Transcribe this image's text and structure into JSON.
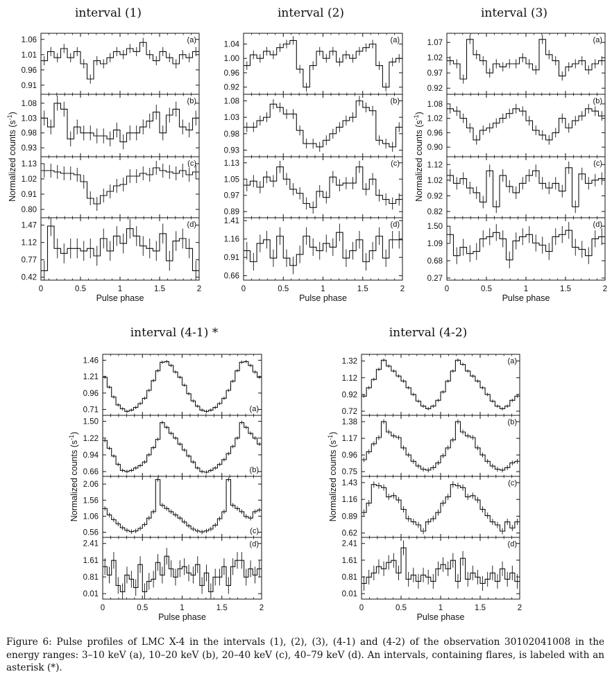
{
  "caption": "Figure 6: Pulse profiles of LMC X-4 in the intervals (1), (2), (3), (4-1) and (4-2) of the observation 30102041008 in the energy ranges: 3–10 keV (a), 10–20 keV (b), 20–40 keV (c), 40–79 keV (d). An intervals, containing flares, is labeled with an asterisk (*).",
  "chart_data": [
    {
      "type": "line",
      "title": "interval (1)",
      "xlabel": "Pulse phase",
      "ylabel": "Normalized counts (s-1)",
      "xlim": [
        0,
        2
      ],
      "xticks": [
        "0",
        "0.5",
        "1",
        "1.5",
        "2"
      ],
      "panels": [
        {
          "label": "(a)",
          "label_pos": "top-right",
          "ylim": [
            0.88,
            1.08
          ],
          "yticks": [
            "0.91",
            "0.96",
            "1.01",
            "1.06"
          ],
          "values": [
            0.99,
            1.02,
            1.0,
            1.03,
            1.0,
            1.02,
            0.98,
            0.93,
            0.99,
            0.98,
            1.0,
            1.02,
            1.01,
            1.03,
            1.02,
            1.05,
            1.01,
            0.99,
            1.02,
            1.0,
            0.98,
            1.01,
            1.0,
            1.02
          ],
          "err": 0.015
        },
        {
          "label": "(b)",
          "label_pos": "top-right",
          "ylim": [
            0.9,
            1.11
          ],
          "yticks": [
            "0.93",
            "0.98",
            "1.03",
            "1.08"
          ],
          "values": [
            1.03,
            1.0,
            1.08,
            1.06,
            0.96,
            1.0,
            0.98,
            0.98,
            0.97,
            0.97,
            0.96,
            0.99,
            0.95,
            0.98,
            0.98,
            1.0,
            1.02,
            1.05,
            0.98,
            1.04,
            1.06,
            1.0,
            0.99,
            1.03
          ],
          "err": 0.025
        },
        {
          "label": "(c)",
          "label_pos": "top-right",
          "ylim": [
            0.74,
            1.18
          ],
          "yticks": [
            "0.80",
            "0.91",
            "1.02",
            "1.13"
          ],
          "values": [
            1.08,
            1.08,
            1.07,
            1.06,
            1.06,
            1.05,
            1.0,
            0.88,
            0.84,
            0.9,
            0.93,
            0.97,
            0.98,
            1.04,
            1.04,
            1.06,
            1.05,
            1.1,
            1.08,
            1.07,
            1.06,
            1.08,
            1.05,
            1.07
          ],
          "err": 0.05
        },
        {
          "label": "(d)",
          "label_pos": "top-right",
          "ylim": [
            0.36,
            1.62
          ],
          "yticks": [
            "0.42",
            "0.77",
            "1.12",
            "1.47"
          ],
          "values": [
            0.55,
            1.45,
            1.0,
            0.9,
            1.0,
            1.0,
            0.95,
            1.0,
            0.85,
            1.2,
            0.95,
            1.25,
            1.1,
            1.4,
            1.25,
            1.05,
            1.0,
            0.95,
            1.3,
            0.75,
            1.15,
            1.2,
            1.0,
            0.55
          ],
          "err": 0.2
        }
      ]
    },
    {
      "type": "line",
      "title": "interval (2)",
      "xlabel": "Pulse phase",
      "ylabel": "",
      "xlim": [
        0,
        2
      ],
      "xticks": [
        "0",
        "0.5",
        "1",
        "1.5",
        "2"
      ],
      "panels": [
        {
          "label": "(a)",
          "label_pos": "top-right",
          "ylim": [
            0.9,
            1.07
          ],
          "yticks": [
            "0.92",
            "0.96",
            "1.00",
            "1.04"
          ],
          "values": [
            0.98,
            1.01,
            1.0,
            1.02,
            1.01,
            1.03,
            1.04,
            1.05,
            0.97,
            0.92,
            0.98,
            1.02,
            1.0,
            1.02,
            0.99,
            1.01,
            1.0,
            1.02,
            1.03,
            1.04,
            0.98,
            0.92,
            0.99,
            1.0
          ],
          "err": 0.012
        },
        {
          "label": "(b)",
          "label_pos": "top-right",
          "ylim": [
            0.91,
            1.1
          ],
          "yticks": [
            "0.93",
            "0.98",
            "1.03",
            "1.08"
          ],
          "values": [
            1.0,
            1.0,
            1.02,
            1.03,
            1.07,
            1.06,
            1.04,
            1.04,
            0.99,
            0.95,
            0.95,
            0.94,
            0.96,
            0.98,
            1.0,
            1.02,
            1.03,
            1.08,
            1.06,
            1.05,
            0.96,
            0.95,
            0.94,
            1.0
          ],
          "err": 0.015
        },
        {
          "label": "(c)",
          "label_pos": "top-right",
          "ylim": [
            0.86,
            1.16
          ],
          "yticks": [
            "0.89",
            "0.97",
            "1.05",
            "1.13"
          ],
          "values": [
            1.02,
            1.04,
            1.01,
            1.06,
            1.04,
            1.11,
            1.05,
            1.0,
            0.98,
            0.93,
            0.91,
            0.99,
            0.96,
            1.06,
            1.02,
            1.03,
            1.03,
            1.11,
            1.0,
            1.05,
            0.97,
            0.95,
            0.93,
            0.95
          ],
          "err": 0.03
        },
        {
          "label": "(d)",
          "label_pos": "top-right",
          "ylim": [
            0.6,
            1.45
          ],
          "yticks": [
            "0.66",
            "0.91",
            "1.16",
            "1.41"
          ],
          "values": [
            1.0,
            0.85,
            1.1,
            1.15,
            0.9,
            1.2,
            0.9,
            0.8,
            0.95,
            1.2,
            1.05,
            1.0,
            1.1,
            1.05,
            1.25,
            0.9,
            1.0,
            1.15,
            0.85,
            1.0,
            1.2,
            0.9,
            1.15,
            1.15
          ],
          "err": 0.12
        }
      ]
    },
    {
      "type": "line",
      "title": "interval (3)",
      "xlabel": "Pulse phase",
      "ylabel": "Normalized counts (s-1)",
      "xlim": [
        0,
        2
      ],
      "xticks": [
        "0",
        "0.5",
        "1",
        "1.5",
        "2"
      ],
      "panels": [
        {
          "label": "(a)",
          "label_pos": "top-right",
          "ylim": [
            0.9,
            1.1
          ],
          "yticks": [
            "0.92",
            "0.97",
            "1.02",
            "1.07"
          ],
          "values": [
            1.01,
            1.0,
            0.95,
            1.08,
            1.03,
            1.01,
            0.97,
            1.0,
            0.99,
            1.0,
            1.0,
            1.02,
            1.0,
            0.98,
            1.08,
            1.03,
            1.01,
            0.96,
            0.99,
            1.0,
            1.01,
            0.98,
            1.0,
            1.01
          ],
          "err": 0.015
        },
        {
          "label": "(b)",
          "label_pos": "top-right",
          "ylim": [
            0.86,
            1.12
          ],
          "yticks": [
            "0.90",
            "0.96",
            "1.02",
            "1.08"
          ],
          "values": [
            1.06,
            1.05,
            1.02,
            0.98,
            0.93,
            0.97,
            0.98,
            1.0,
            1.02,
            1.04,
            1.06,
            1.05,
            1.01,
            0.97,
            0.95,
            0.93,
            0.96,
            1.02,
            0.98,
            1.01,
            1.03,
            1.06,
            1.05,
            1.03
          ],
          "err": 0.02
        },
        {
          "label": "(c)",
          "label_pos": "top-right",
          "ylim": [
            0.78,
            1.17
          ],
          "yticks": [
            "0.82",
            "0.92",
            "1.02",
            "1.12"
          ],
          "values": [
            1.05,
            1.0,
            1.03,
            0.97,
            0.94,
            0.88,
            1.08,
            0.85,
            1.05,
            0.98,
            0.94,
            1.0,
            1.05,
            1.08,
            1.0,
            0.97,
            1.0,
            0.95,
            1.1,
            0.85,
            1.06,
            1.0,
            1.02,
            1.03
          ],
          "err": 0.04
        },
        {
          "label": "(d)",
          "label_pos": "top-right",
          "ylim": [
            0.22,
            1.7
          ],
          "yticks": [
            "0.27",
            "0.68",
            "1.09",
            "1.50"
          ],
          "values": [
            1.3,
            0.8,
            1.0,
            0.85,
            0.9,
            1.2,
            1.25,
            1.35,
            1.2,
            0.7,
            1.15,
            1.25,
            1.3,
            1.1,
            1.05,
            0.9,
            1.25,
            1.3,
            1.4,
            1.0,
            0.95,
            0.8,
            1.2,
            1.25
          ],
          "err": 0.2
        }
      ]
    },
    {
      "type": "line",
      "title": "interval (4-1) *",
      "xlabel": "Pulse phase",
      "ylabel": "Normalized counts (s-1)",
      "xlim": [
        0,
        2
      ],
      "xticks": [
        "0",
        "0.5",
        "1",
        "1.5",
        "2"
      ],
      "panels": [
        {
          "label": "(a)",
          "label_pos": "bottom-right",
          "ylim": [
            0.62,
            1.55
          ],
          "yticks": [
            "0.71",
            "0.96",
            "1.21",
            "1.46"
          ],
          "values": [
            1.2,
            1.05,
            0.9,
            0.78,
            0.72,
            0.68,
            0.7,
            0.74,
            0.8,
            0.88,
            1.0,
            1.15,
            1.3,
            1.43,
            1.44,
            1.38,
            1.28,
            1.2,
            1.08,
            0.95,
            0.84,
            0.76,
            0.7,
            0.68,
            0.7,
            0.74,
            0.8,
            0.88,
            1.0,
            1.14,
            1.3,
            1.43,
            1.44,
            1.38,
            1.28,
            1.2
          ],
          "err": 0.025
        },
        {
          "label": "(b)",
          "label_pos": "bottom-right",
          "ylim": [
            0.58,
            1.6
          ],
          "yticks": [
            "0.66",
            "0.94",
            "1.22",
            "1.50"
          ],
          "values": [
            1.18,
            1.05,
            0.92,
            0.78,
            0.68,
            0.66,
            0.68,
            0.72,
            0.76,
            0.82,
            0.94,
            1.06,
            1.2,
            1.48,
            1.4,
            1.3,
            1.22,
            1.12,
            1.02,
            0.92,
            0.82,
            0.72,
            0.66,
            0.65,
            0.68,
            0.72,
            0.78,
            0.86,
            0.96,
            1.08,
            1.22,
            1.48,
            1.4,
            1.3,
            1.22,
            1.12
          ],
          "err": 0.03
        },
        {
          "label": "(c)",
          "label_pos": "bottom-right",
          "ylim": [
            0.4,
            2.3
          ],
          "yticks": [
            "0.56",
            "1.06",
            "1.56",
            "2.06"
          ],
          "values": [
            1.3,
            1.1,
            0.95,
            0.82,
            0.7,
            0.62,
            0.58,
            0.6,
            0.68,
            0.8,
            1.0,
            1.2,
            2.2,
            1.4,
            1.3,
            1.2,
            1.1,
            1.0,
            0.88,
            0.76,
            0.66,
            0.6,
            0.57,
            0.6,
            0.66,
            0.78,
            0.98,
            1.2,
            2.2,
            1.4,
            1.3,
            1.2,
            1.05,
            1.0,
            1.2,
            1.25
          ],
          "err": 0.07
        },
        {
          "label": "(d)",
          "label_pos": "top-right",
          "ylim": [
            -0.25,
            2.7
          ],
          "yticks": [
            "0.01",
            "0.81",
            "1.61",
            "2.41"
          ],
          "values": [
            1.3,
            0.9,
            1.6,
            0.4,
            0.1,
            0.9,
            0.7,
            0.3,
            1.4,
            0.1,
            0.6,
            0.7,
            1.5,
            0.9,
            1.8,
            1.2,
            0.8,
            1.2,
            1.3,
            1.0,
            0.9,
            1.4,
            0.4,
            1.0,
            0.1,
            0.8,
            0.8,
            1.3,
            0.4,
            1.3,
            1.6,
            1.6,
            0.8,
            1.2,
            0.9,
            1.2
          ],
          "err": 0.4
        }
      ]
    },
    {
      "type": "line",
      "title": "interval (4-2)",
      "xlabel": "Pulse phase",
      "ylabel": "Normalized counts (s-1)",
      "xlim": [
        0,
        2
      ],
      "xticks": [
        "0",
        "0.5",
        "1",
        "1.5",
        "2"
      ],
      "panels": [
        {
          "label": "(a)",
          "label_pos": "top-right",
          "ylim": [
            0.67,
            1.4
          ],
          "yticks": [
            "0.72",
            "0.92",
            "1.12",
            "1.32"
          ],
          "values": [
            0.9,
            1.0,
            1.1,
            1.22,
            1.33,
            1.26,
            1.2,
            1.14,
            1.08,
            1.0,
            0.92,
            0.84,
            0.78,
            0.75,
            0.78,
            0.85,
            0.95,
            1.08,
            1.2,
            1.33,
            1.28,
            1.2,
            1.14,
            1.08,
            1.0,
            0.92,
            0.84,
            0.78,
            0.75,
            0.78,
            0.85,
            0.9
          ],
          "err": 0.02
        },
        {
          "label": "(b)",
          "label_pos": "top-right",
          "ylim": [
            0.69,
            1.46
          ],
          "yticks": [
            "0.75",
            "0.96",
            "1.17",
            "1.38"
          ],
          "values": [
            0.9,
            1.0,
            1.1,
            1.18,
            1.38,
            1.25,
            1.2,
            1.18,
            1.05,
            0.96,
            0.88,
            0.82,
            0.78,
            0.77,
            0.8,
            0.86,
            0.95,
            1.05,
            1.15,
            1.38,
            1.25,
            1.2,
            1.18,
            1.05,
            0.96,
            0.88,
            0.82,
            0.78,
            0.77,
            0.8,
            0.86,
            0.88
          ],
          "err": 0.03
        },
        {
          "label": "(c)",
          "label_pos": "top-right",
          "ylim": [
            0.55,
            1.53
          ],
          "yticks": [
            "0.62",
            "0.89",
            "1.16",
            "1.43"
          ],
          "values": [
            0.95,
            1.1,
            1.4,
            1.38,
            1.35,
            1.2,
            1.22,
            1.15,
            1.0,
            0.85,
            0.8,
            0.75,
            0.65,
            0.8,
            0.85,
            0.95,
            1.1,
            1.2,
            1.4,
            1.38,
            1.35,
            1.2,
            1.22,
            1.15,
            1.0,
            0.9,
            0.8,
            0.75,
            0.65,
            0.8,
            0.7,
            0.8
          ],
          "err": 0.05
        },
        {
          "label": "(d)",
          "label_pos": "top-right",
          "ylim": [
            -0.25,
            2.7
          ],
          "yticks": [
            "0.01",
            "0.81",
            "1.61",
            "2.41"
          ],
          "values": [
            0.5,
            0.8,
            1.0,
            1.3,
            1.2,
            1.5,
            1.6,
            1.0,
            2.2,
            0.7,
            0.9,
            0.6,
            0.9,
            0.8,
            0.6,
            1.2,
            1.4,
            1.2,
            1.6,
            0.6,
            1.7,
            0.7,
            1.0,
            0.8,
            0.5,
            0.7,
            1.0,
            0.6,
            1.2,
            0.7,
            1.0,
            0.6
          ],
          "err": 0.35
        }
      ]
    }
  ]
}
